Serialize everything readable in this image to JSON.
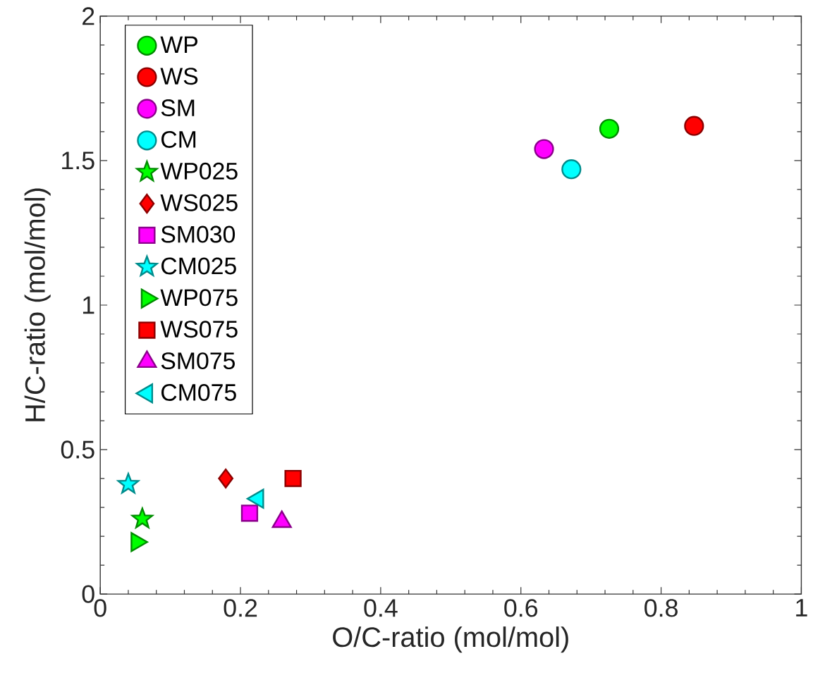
{
  "chart_data": {
    "type": "scatter",
    "xlabel": "O/C-ratio (mol/mol)",
    "ylabel": "H/C-ratio (mol/mol)",
    "xlim": [
      0,
      1
    ],
    "ylim": [
      0,
      2
    ],
    "xticks": [
      0,
      0.2,
      0.4,
      0.6,
      0.8,
      1
    ],
    "yticks": [
      0,
      0.5,
      1,
      1.5,
      2
    ],
    "grid": false,
    "legend": "top left",
    "series": [
      {
        "name": "WP",
        "color": "#00ff00",
        "marker": "circle",
        "x": [
          0.726
        ],
        "values": [
          1.61
        ]
      },
      {
        "name": "WS",
        "color": "#ff0000",
        "marker": "circle",
        "x": [
          0.847
        ],
        "values": [
          1.62
        ]
      },
      {
        "name": "SM",
        "color": "#ff00ff",
        "marker": "circle",
        "x": [
          0.633
        ],
        "values": [
          1.54
        ]
      },
      {
        "name": "CM",
        "color": "#00ffff",
        "marker": "circle",
        "x": [
          0.672
        ],
        "values": [
          1.47
        ]
      },
      {
        "name": "WP025",
        "color": "#00ff00",
        "marker": "star",
        "x": [
          0.06
        ],
        "values": [
          0.26
        ]
      },
      {
        "name": "WS025",
        "color": "#ff0000",
        "marker": "diamond",
        "x": [
          0.179
        ],
        "values": [
          0.4
        ]
      },
      {
        "name": "SM030",
        "color": "#ff00ff",
        "marker": "square",
        "x": [
          0.213
        ],
        "values": [
          0.28
        ]
      },
      {
        "name": "CM025",
        "color": "#00ffff",
        "marker": "star",
        "x": [
          0.04
        ],
        "values": [
          0.38
        ]
      },
      {
        "name": "WP075",
        "color": "#00ff00",
        "marker": "triangle-right",
        "x": [
          0.052
        ],
        "values": [
          0.18
        ]
      },
      {
        "name": "WS075",
        "color": "#ff0000",
        "marker": "square",
        "x": [
          0.275
        ],
        "values": [
          0.4
        ]
      },
      {
        "name": "SM075",
        "color": "#ff00ff",
        "marker": "triangle",
        "x": [
          0.259
        ],
        "values": [
          0.25
        ]
      },
      {
        "name": "CM075",
        "color": "#00ffff",
        "marker": "triangle-left",
        "x": [
          0.225
        ],
        "values": [
          0.33
        ]
      }
    ]
  }
}
